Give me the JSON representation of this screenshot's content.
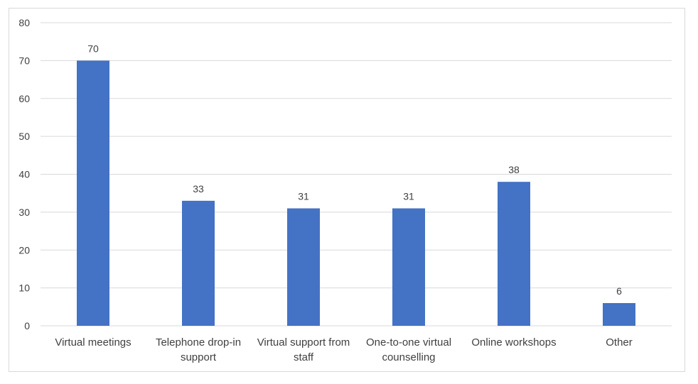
{
  "chart_data": {
    "type": "bar",
    "categories": [
      [
        "Virtual meetings"
      ],
      [
        "Telephone drop-in",
        "support"
      ],
      [
        "Virtual support from",
        "staff"
      ],
      [
        "One-to-one virtual",
        "counselling"
      ],
      [
        "Online workshops"
      ],
      [
        "Other"
      ]
    ],
    "values": [
      70,
      33,
      31,
      31,
      38,
      6
    ],
    "yticks": [
      "0",
      "10",
      "20",
      "30",
      "40",
      "50",
      "60",
      "70",
      "80"
    ],
    "ylim": [
      0,
      80
    ],
    "grid": true,
    "legend": "none",
    "bar_color": "#4472c4",
    "gridline_color": "#d9d9d9"
  }
}
